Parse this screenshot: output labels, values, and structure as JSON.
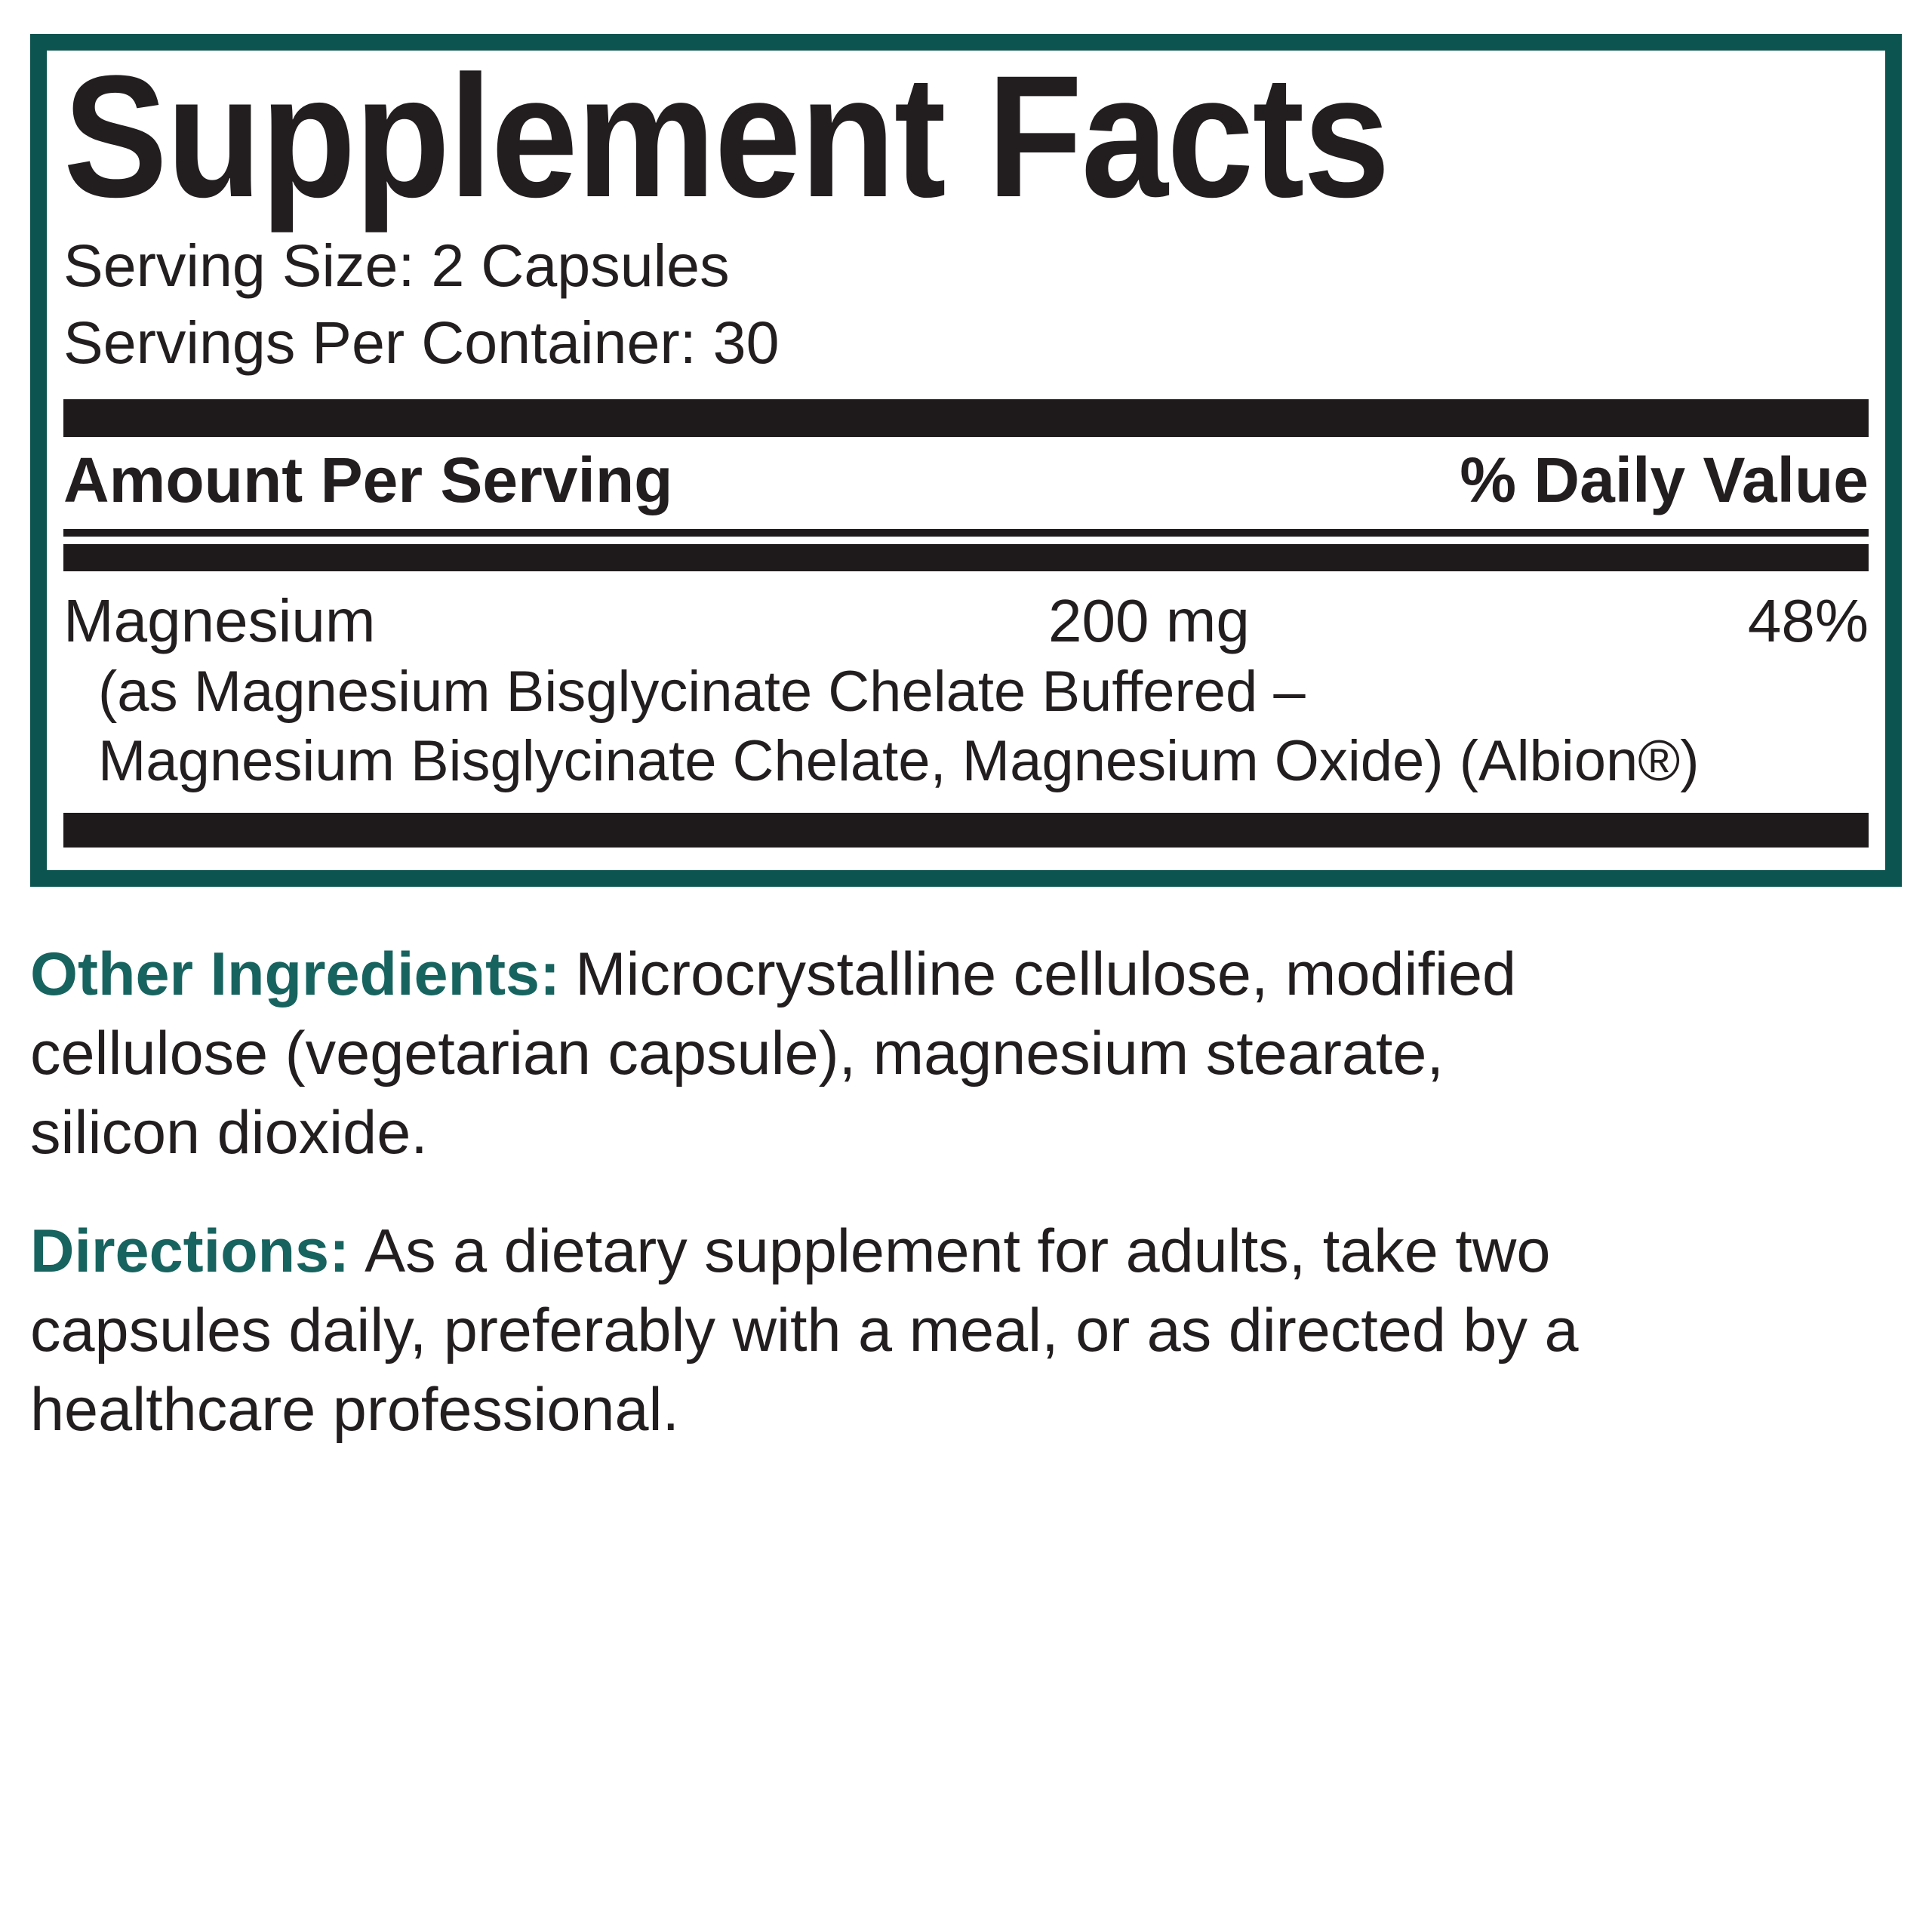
{
  "colors": {
    "teal_border": "#0c5450",
    "teal_heading": "#17635f",
    "text_black": "#221e1f",
    "bar_black": "#1e1a1b"
  },
  "panel": {
    "title": "Supplement Facts",
    "serving_size": "Serving Size: 2 Capsules",
    "servings_per_container": "Servings Per Container: 30",
    "header": {
      "amount": "Amount Per Serving",
      "daily_value": "% Daily Value"
    },
    "nutrients": [
      {
        "name": "Magnesium",
        "amount": "200 mg",
        "daily_value": "48%",
        "details": [
          "(as Magnesium Bisglycinate Chelate Buffered –",
          "Magnesium Bisglycinate Chelate, Magnesium Oxide) (Albion®)"
        ]
      }
    ]
  },
  "other_ingredients": {
    "label": "Other Ingredients:",
    "lines": [
      "Microcrystalline cellulose, modified",
      "cellulose (vegetarian capsule), magnesium stearate,",
      "silicon dioxide."
    ]
  },
  "directions": {
    "label": "Directions:",
    "lines": [
      "As a dietary supplement for adults, take two",
      "capsules daily, preferably with a meal, or as directed by a",
      "healthcare professional."
    ]
  }
}
